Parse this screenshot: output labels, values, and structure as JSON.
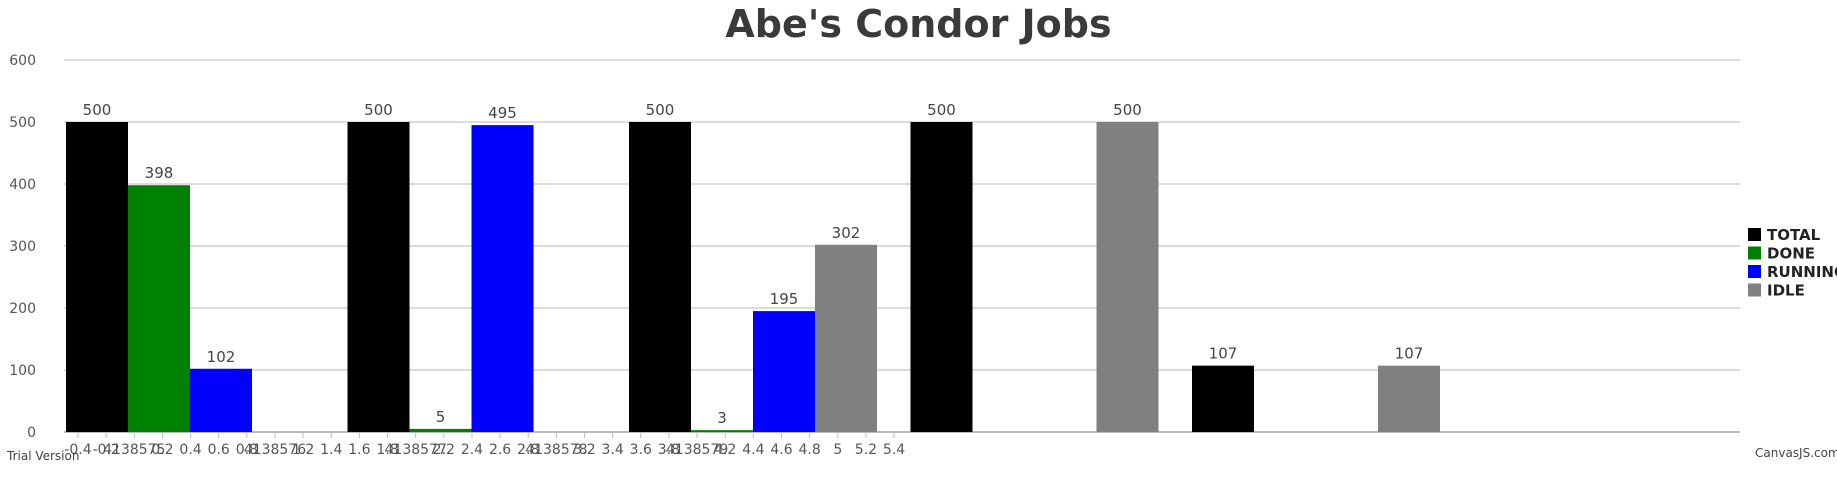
{
  "chart_data": {
    "type": "bar",
    "title": "Abe's Condor Jobs",
    "ylim": [
      0,
      600
    ],
    "y_ticks": [
      0,
      100,
      200,
      300,
      400,
      500,
      600
    ],
    "x_tick_labels": [
      "-0.4",
      "-0.2",
      "4138575",
      "0.2",
      "0.4",
      "0.6",
      "0.8",
      "4138576",
      "1.2",
      "1.4",
      "1.6",
      "1.8",
      "4138577",
      "2.2",
      "2.4",
      "2.6",
      "2.8",
      "4138578",
      "3.2",
      "3.4",
      "3.6",
      "3.8",
      "4138579",
      "4.2",
      "4.4",
      "4.6",
      "4.8",
      "5",
      "5.2",
      "5.4"
    ],
    "categories": [
      "4138575",
      "4138576",
      "4138577",
      "4138578",
      "4138579"
    ],
    "grid": true,
    "legend_position": "right",
    "series": [
      {
        "name": "TOTAL",
        "color": "#000000",
        "values": [
          500,
          500,
          500,
          500,
          107
        ]
      },
      {
        "name": "DONE",
        "color": "#008000",
        "values": [
          398,
          5,
          3,
          null,
          null
        ]
      },
      {
        "name": "RUNNING",
        "color": "#0000ff",
        "values": [
          102,
          495,
          195,
          null,
          null
        ]
      },
      {
        "name": "IDLE",
        "color": "#808080",
        "values": [
          null,
          null,
          302,
          500,
          107
        ]
      }
    ]
  },
  "footer": {
    "left_text": "Trial Version",
    "right_text": "CanvasJS.com"
  }
}
